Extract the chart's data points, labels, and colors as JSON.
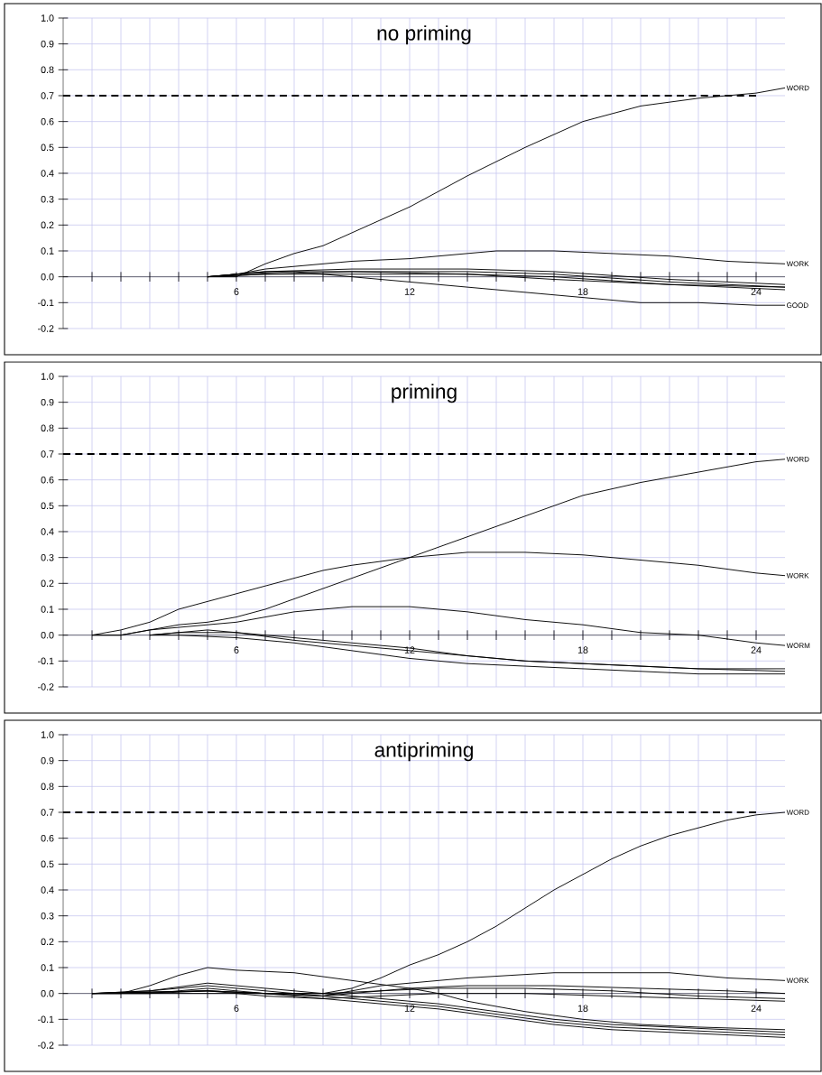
{
  "chart_data": [
    {
      "type": "line",
      "title": "no priming",
      "xlim": [
        0,
        25
      ],
      "ylim": [
        -0.2,
        1.0
      ],
      "grid": true,
      "xticks": [
        {
          "value": 1,
          "label": null
        },
        {
          "value": 2,
          "label": null
        },
        {
          "value": 3,
          "label": null
        },
        {
          "value": 4,
          "label": null
        },
        {
          "value": 5,
          "label": null
        },
        6,
        {
          "value": 7,
          "label": null
        },
        {
          "value": 8,
          "label": null
        },
        {
          "value": 9,
          "label": null
        },
        {
          "value": 10,
          "label": null
        },
        {
          "value": 11,
          "label": null
        },
        12,
        {
          "value": 13,
          "label": null
        },
        {
          "value": 14,
          "label": null
        },
        {
          "value": 15,
          "label": null
        },
        {
          "value": 16,
          "label": null
        },
        {
          "value": 17,
          "label": null
        },
        18,
        {
          "value": 19,
          "label": null
        },
        {
          "value": 20,
          "label": null
        },
        {
          "value": 21,
          "label": null
        },
        {
          "value": 22,
          "label": null
        },
        {
          "value": 23,
          "label": null
        },
        24
      ],
      "yticks": [
        {
          "value": -0.2,
          "label": "-0.2"
        },
        {
          "value": -0.1,
          "label": "-0.1"
        },
        {
          "value": 0,
          "label": "0.0"
        },
        {
          "value": 0.1,
          "label": "0.1"
        },
        {
          "value": 0.2,
          "label": "0.2"
        },
        {
          "value": 0.3,
          "label": "0.3"
        },
        {
          "value": 0.4,
          "label": "0.4"
        },
        {
          "value": 0.5,
          "label": "0.5"
        },
        {
          "value": 0.6,
          "label": "0.6"
        },
        {
          "value": 0.7,
          "label": "0.7"
        },
        {
          "value": 0.8,
          "label": "0.8"
        },
        {
          "value": 0.9,
          "label": "0.9"
        },
        {
          "value": 1.0,
          "label": "1.0"
        }
      ],
      "ref_lines": [
        {
          "axis": "y",
          "value": 0.7,
          "line_style": "dashed"
        }
      ],
      "series": [
        {
          "name": "WORD",
          "color": "#000000",
          "x": [
            5,
            6,
            7,
            8,
            9,
            10,
            12,
            14,
            16,
            18,
            20,
            22,
            24,
            25
          ],
          "values": [
            0,
            0,
            0.05,
            0.09,
            0.12,
            0.17,
            0.27,
            0.39,
            0.5,
            0.6,
            0.66,
            0.69,
            0.71,
            0.73
          ]
        },
        {
          "name": "WORK",
          "color": "#000000",
          "x": [
            5,
            6,
            7,
            8,
            10,
            12,
            14,
            15,
            17,
            19,
            21,
            23,
            25
          ],
          "values": [
            0,
            0.01,
            0.03,
            0.04,
            0.06,
            0.07,
            0.09,
            0.1,
            0.1,
            0.09,
            0.08,
            0.06,
            0.05
          ]
        },
        {
          "color": "#000000",
          "x": [
            5,
            7,
            10,
            14,
            17,
            21,
            25
          ],
          "values": [
            0,
            0.02,
            0.03,
            0.03,
            0.02,
            -0.01,
            -0.03
          ]
        },
        {
          "color": "#000000",
          "x": [
            5,
            7,
            10,
            14,
            17,
            21,
            25
          ],
          "values": [
            0,
            0.02,
            0.02,
            0.02,
            0.01,
            -0.02,
            -0.04
          ]
        },
        {
          "color": "#000000",
          "x": [
            5,
            7,
            10,
            14,
            17,
            21,
            25
          ],
          "values": [
            0,
            0.01,
            0.02,
            0.01,
            0,
            -0.03,
            -0.04
          ]
        },
        {
          "color": "#000000",
          "x": [
            5,
            7,
            10,
            14,
            17,
            21,
            25
          ],
          "values": [
            0,
            0.01,
            0.01,
            0.01,
            -0.01,
            -0.03,
            -0.05
          ]
        },
        {
          "name": "GOOD",
          "color": "#000000",
          "x": [
            5,
            6,
            8,
            10,
            12,
            14,
            16,
            18,
            20,
            22,
            24,
            25
          ],
          "values": [
            0,
            0.01,
            0.02,
            0,
            -0.02,
            -0.04,
            -0.06,
            -0.08,
            -0.1,
            -0.1,
            -0.11,
            -0.11
          ]
        }
      ]
    },
    {
      "type": "line",
      "title": "priming",
      "xlim": [
        0,
        25
      ],
      "ylim": [
        -0.2,
        1.0
      ],
      "grid": true,
      "xticks": [
        {
          "value": 1,
          "label": null
        },
        {
          "value": 2,
          "label": null
        },
        {
          "value": 3,
          "label": null
        },
        {
          "value": 4,
          "label": null
        },
        {
          "value": 5,
          "label": null
        },
        6,
        {
          "value": 7,
          "label": null
        },
        {
          "value": 8,
          "label": null
        },
        {
          "value": 9,
          "label": null
        },
        {
          "value": 10,
          "label": null
        },
        {
          "value": 11,
          "label": null
        },
        12,
        {
          "value": 13,
          "label": null
        },
        {
          "value": 14,
          "label": null
        },
        {
          "value": 15,
          "label": null
        },
        {
          "value": 16,
          "label": null
        },
        {
          "value": 17,
          "label": null
        },
        18,
        {
          "value": 19,
          "label": null
        },
        {
          "value": 20,
          "label": null
        },
        {
          "value": 21,
          "label": null
        },
        {
          "value": 22,
          "label": null
        },
        {
          "value": 23,
          "label": null
        },
        24
      ],
      "yticks": [
        {
          "value": -0.2,
          "label": "-0.2"
        },
        {
          "value": -0.1,
          "label": "-0.1"
        },
        {
          "value": 0,
          "label": "0.0"
        },
        {
          "value": 0.1,
          "label": "0.1"
        },
        {
          "value": 0.2,
          "label": "0.2"
        },
        {
          "value": 0.3,
          "label": "0.3"
        },
        {
          "value": 0.4,
          "label": "0.4"
        },
        {
          "value": 0.5,
          "label": "0.5"
        },
        {
          "value": 0.6,
          "label": "0.6"
        },
        {
          "value": 0.7,
          "label": "0.7"
        },
        {
          "value": 0.8,
          "label": "0.8"
        },
        {
          "value": 0.9,
          "label": "0.9"
        },
        {
          "value": 1.0,
          "label": "1.0"
        }
      ],
      "ref_lines": [
        {
          "axis": "y",
          "value": 0.7,
          "line_style": "dashed"
        }
      ],
      "series": [
        {
          "name": "WORD",
          "color": "#000000",
          "x": [
            1,
            2,
            3,
            4,
            5,
            6,
            7,
            8,
            9,
            10,
            12,
            14,
            16,
            18,
            20,
            22,
            24,
            25
          ],
          "values": [
            0,
            0,
            0.02,
            0.04,
            0.05,
            0.07,
            0.1,
            0.14,
            0.18,
            0.22,
            0.3,
            0.38,
            0.46,
            0.54,
            0.59,
            0.63,
            0.67,
            0.68
          ]
        },
        {
          "name": "WORK",
          "color": "#000000",
          "x": [
            1,
            2,
            3,
            4,
            5,
            6,
            7,
            8,
            9,
            10,
            12,
            14,
            16,
            18,
            20,
            22,
            24,
            25
          ],
          "values": [
            0,
            0.02,
            0.05,
            0.1,
            0.13,
            0.16,
            0.19,
            0.22,
            0.25,
            0.27,
            0.3,
            0.32,
            0.32,
            0.31,
            0.29,
            0.27,
            0.24,
            0.23
          ]
        },
        {
          "name": "WORM",
          "color": "#000000",
          "x": [
            1,
            2,
            3,
            4,
            5,
            6,
            7,
            8,
            9,
            10,
            11,
            12,
            14,
            16,
            18,
            20,
            22,
            24,
            25
          ],
          "values": [
            0,
            0,
            0.02,
            0.03,
            0.04,
            0.05,
            0.07,
            0.09,
            0.1,
            0.11,
            0.11,
            0.11,
            0.09,
            0.06,
            0.04,
            0.01,
            0,
            -0.03,
            -0.04
          ]
        },
        {
          "color": "#000000",
          "x": [
            3,
            4,
            5,
            6,
            8,
            10,
            12,
            14,
            16,
            18,
            20,
            22,
            25
          ],
          "values": [
            0,
            0.01,
            0.01,
            0.01,
            -0.02,
            -0.04,
            -0.06,
            -0.08,
            -0.1,
            -0.11,
            -0.12,
            -0.13,
            -0.14
          ]
        },
        {
          "color": "#000000",
          "x": [
            3,
            4,
            5,
            6,
            8,
            10,
            12,
            14,
            16,
            18,
            20,
            22,
            25
          ],
          "values": [
            0,
            0.01,
            0.02,
            0.01,
            -0.01,
            -0.03,
            -0.05,
            -0.08,
            -0.1,
            -0.11,
            -0.12,
            -0.13,
            -0.13
          ]
        },
        {
          "color": "#000000",
          "x": [
            3,
            4,
            6,
            8,
            10,
            12,
            14,
            16,
            18,
            20,
            22,
            25
          ],
          "values": [
            0,
            0,
            -0.01,
            -0.03,
            -0.06,
            -0.09,
            -0.11,
            -0.12,
            -0.13,
            -0.14,
            -0.15,
            -0.15
          ]
        }
      ]
    },
    {
      "type": "line",
      "title": "antipriming",
      "xlim": [
        0,
        25
      ],
      "ylim": [
        -0.2,
        1.0
      ],
      "grid": true,
      "xticks": [
        {
          "value": 1,
          "label": null
        },
        {
          "value": 2,
          "label": null
        },
        {
          "value": 3,
          "label": null
        },
        {
          "value": 4,
          "label": null
        },
        {
          "value": 5,
          "label": null
        },
        6,
        {
          "value": 7,
          "label": null
        },
        {
          "value": 8,
          "label": null
        },
        {
          "value": 9,
          "label": null
        },
        {
          "value": 10,
          "label": null
        },
        {
          "value": 11,
          "label": null
        },
        12,
        {
          "value": 13,
          "label": null
        },
        {
          "value": 14,
          "label": null
        },
        {
          "value": 15,
          "label": null
        },
        {
          "value": 16,
          "label": null
        },
        {
          "value": 17,
          "label": null
        },
        18,
        {
          "value": 19,
          "label": null
        },
        {
          "value": 20,
          "label": null
        },
        {
          "value": 21,
          "label": null
        },
        {
          "value": 22,
          "label": null
        },
        {
          "value": 23,
          "label": null
        },
        24
      ],
      "yticks": [
        {
          "value": -0.2,
          "label": "-0.2"
        },
        {
          "value": -0.1,
          "label": "-0.1"
        },
        {
          "value": 0,
          "label": "0.0"
        },
        {
          "value": 0.1,
          "label": "0.1"
        },
        {
          "value": 0.2,
          "label": "0.2"
        },
        {
          "value": 0.3,
          "label": "0.3"
        },
        {
          "value": 0.4,
          "label": "0.4"
        },
        {
          "value": 0.5,
          "label": "0.5"
        },
        {
          "value": 0.6,
          "label": "0.6"
        },
        {
          "value": 0.7,
          "label": "0.7"
        },
        {
          "value": 0.8,
          "label": "0.8"
        },
        {
          "value": 0.9,
          "label": "0.9"
        },
        {
          "value": 1.0,
          "label": "1.0"
        }
      ],
      "ref_lines": [
        {
          "axis": "y",
          "value": 0.7,
          "line_style": "dashed"
        }
      ],
      "series": [
        {
          "name": "WORD",
          "color": "#000000",
          "x": [
            1,
            9,
            10,
            11,
            12,
            13,
            14,
            15,
            16,
            17,
            18,
            19,
            20,
            21,
            22,
            23,
            24,
            25
          ],
          "values": [
            0,
            0,
            0.02,
            0.06,
            0.11,
            0.15,
            0.2,
            0.26,
            0.33,
            0.4,
            0.46,
            0.52,
            0.57,
            0.61,
            0.64,
            0.67,
            0.69,
            0.7
          ]
        },
        {
          "name": "WORK",
          "color": "#000000",
          "x": [
            1,
            3,
            5,
            7,
            9,
            10,
            11,
            12,
            14,
            17,
            19,
            21,
            23,
            25
          ],
          "values": [
            0,
            0,
            0.01,
            0,
            -0.01,
            0.01,
            0.03,
            0.04,
            0.06,
            0.08,
            0.08,
            0.08,
            0.06,
            0.05
          ]
        },
        {
          "color": "#000000",
          "x": [
            1,
            2,
            3,
            4,
            5,
            6,
            8,
            10,
            12,
            13,
            14,
            16,
            18,
            20,
            22,
            25
          ],
          "values": [
            0,
            0,
            0.03,
            0.07,
            0.1,
            0.09,
            0.08,
            0.05,
            0.02,
            0,
            -0.03,
            -0.07,
            -0.1,
            -0.12,
            -0.13,
            -0.14
          ]
        },
        {
          "color": "#000000",
          "x": [
            1,
            3,
            5,
            7,
            9,
            11,
            13,
            15,
            17,
            19,
            21,
            23,
            25
          ],
          "values": [
            0,
            0.01,
            0.04,
            0.02,
            0,
            -0.02,
            -0.04,
            -0.07,
            -0.1,
            -0.12,
            -0.13,
            -0.14,
            -0.15
          ]
        },
        {
          "color": "#000000",
          "x": [
            1,
            3,
            5,
            7,
            9,
            11,
            13,
            15,
            17,
            19,
            21,
            23,
            25
          ],
          "values": [
            0,
            0.01,
            0.03,
            0.01,
            -0.01,
            -0.03,
            -0.05,
            -0.08,
            -0.11,
            -0.13,
            -0.14,
            -0.15,
            -0.16
          ]
        },
        {
          "color": "#000000",
          "x": [
            1,
            3,
            5,
            7,
            9,
            11,
            13,
            15,
            17,
            19,
            21,
            23,
            25
          ],
          "values": [
            0,
            0,
            0.02,
            0,
            -0.02,
            -0.04,
            -0.06,
            -0.09,
            -0.12,
            -0.14,
            -0.15,
            -0.16,
            -0.17
          ]
        },
        {
          "color": "#000000",
          "x": [
            1,
            5,
            7,
            9,
            11,
            12,
            14,
            17,
            20,
            23,
            25
          ],
          "values": [
            0,
            0.01,
            0,
            0,
            0.01,
            0.02,
            0.03,
            0.03,
            0.02,
            0.01,
            0
          ]
        },
        {
          "color": "#000000",
          "x": [
            1,
            5,
            7,
            9,
            11,
            13,
            16,
            19,
            22,
            25
          ],
          "values": [
            0,
            0.01,
            0,
            -0.01,
            0.01,
            0.02,
            0.02,
            0.01,
            -0.01,
            -0.02
          ]
        },
        {
          "color": "#000000",
          "x": [
            1,
            5,
            7,
            9,
            11,
            13,
            16,
            19,
            22,
            25
          ],
          "values": [
            0,
            0.01,
            -0.01,
            -0.02,
            -0.01,
            0,
            0,
            -0.01,
            -0.02,
            -0.03
          ]
        }
      ]
    }
  ]
}
